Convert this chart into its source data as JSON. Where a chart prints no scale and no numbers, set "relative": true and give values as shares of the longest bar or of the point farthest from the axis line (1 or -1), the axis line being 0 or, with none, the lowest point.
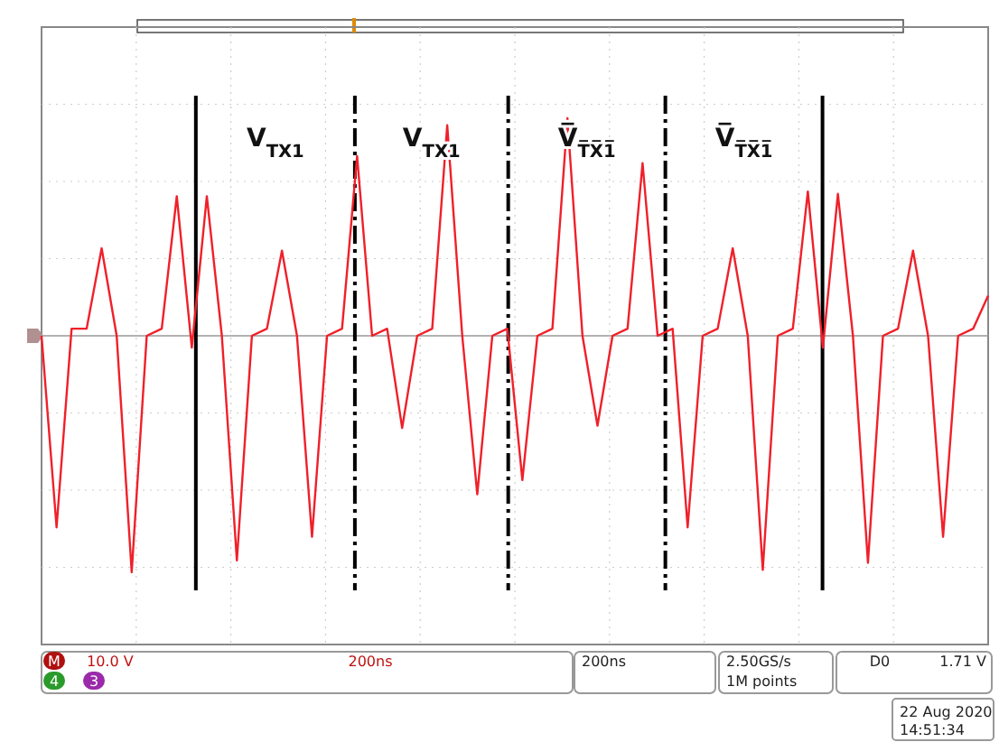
{
  "chart_data": {
    "type": "line",
    "relative": true,
    "categories": [
      null,
      null,
      null,
      null,
      null,
      null,
      null,
      null,
      null,
      null,
      null,
      null,
      null,
      null,
      null,
      null,
      null,
      null,
      null,
      null,
      null,
      null,
      null,
      null,
      null,
      null,
      null,
      null,
      null,
      null,
      null,
      null,
      null,
      null,
      null,
      null,
      null,
      null,
      null,
      null,
      null,
      null,
      null,
      null,
      null,
      null,
      null,
      null,
      null,
      null,
      null,
      null,
      null,
      null,
      null,
      null,
      null,
      null,
      null,
      null,
      null,
      null,
      null,
      null
    ],
    "series": [
      {
        "color": "#f0202a",
        "values": [
          0,
          -0.81,
          0.03,
          0.03,
          0.37,
          0,
          -1.0,
          0,
          0.03,
          0.59,
          -0.05,
          0.59,
          0,
          -0.95,
          0,
          0.03,
          0.36,
          0,
          -0.85,
          0,
          0.03,
          0.76,
          0,
          0.03,
          -0.39,
          0,
          0.03,
          0.89,
          0,
          -0.67,
          0,
          0.03,
          -0.61,
          0,
          0.03,
          0.92,
          0,
          -0.38,
          0,
          0.03,
          0.73,
          0,
          0.03,
          -0.81,
          0,
          0.03,
          0.37,
          0,
          -0.99,
          0,
          0.03,
          0.61,
          -0.05,
          0.6,
          0,
          -0.96,
          0,
          0.03,
          0.36,
          0,
          -0.85,
          0,
          0.03,
          0.17
        ]
      }
    ],
    "grid": true,
    "line_style": "solid",
    "marker": "none",
    "annotations": [
      "V$_{TX1}$",
      "V$_{TX1}$",
      "V̅$_{T̅X̅1̅}$",
      "V̅$_{T̅X̅1̅}$",
      "M",
      "10.0 V",
      "200ns",
      "4",
      "3",
      "200ns",
      "2.50GS/s",
      "1M points",
      "D0",
      "1.71 V",
      "22 Aug 2020",
      "14:51:34"
    ]
  }
}
